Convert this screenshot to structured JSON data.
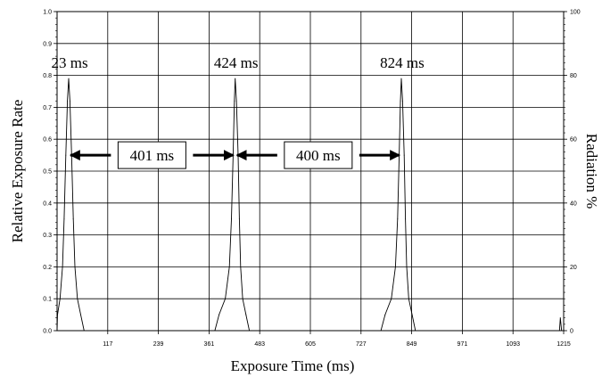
{
  "chart_data": {
    "type": "line",
    "title": "",
    "xlabel": "Exposure Time (ms)",
    "ylabel": "Relative Exposure Rate",
    "y2label": "Radiation %",
    "xlim": [
      -5,
      1215
    ],
    "ylim": [
      0,
      1.0
    ],
    "y2lim": [
      0,
      100
    ],
    "x_ticks": [
      "117",
      "239",
      "361",
      "483",
      "605",
      "727",
      "849",
      "971",
      "1093",
      "1215"
    ],
    "y_ticks": [
      "0.0",
      "0.1",
      "0.2",
      "0.3",
      "0.4",
      "0.5",
      "0.6",
      "0.7",
      "0.8",
      "0.9",
      "1.0"
    ],
    "y2_ticks": [
      "0",
      "20",
      "40",
      "60",
      "80",
      "100"
    ],
    "grid": true,
    "series": [
      {
        "color": "#000000",
        "points": [
          [
            -5,
            0.0
          ],
          [
            -4,
            0.05
          ],
          [
            2,
            0.1
          ],
          [
            8,
            0.2
          ],
          [
            12,
            0.35
          ],
          [
            16,
            0.55
          ],
          [
            20,
            0.72
          ],
          [
            23,
            0.79
          ],
          [
            26,
            0.72
          ],
          [
            30,
            0.55
          ],
          [
            34,
            0.35
          ],
          [
            38,
            0.2
          ],
          [
            44,
            0.1
          ],
          [
            52,
            0.05
          ],
          [
            60,
            0.0
          ],
          [
            375,
            0.0
          ],
          [
            385,
            0.05
          ],
          [
            400,
            0.1
          ],
          [
            410,
            0.2
          ],
          [
            415,
            0.35
          ],
          [
            419,
            0.55
          ],
          [
            422,
            0.72
          ],
          [
            424,
            0.79
          ],
          [
            427,
            0.72
          ],
          [
            431,
            0.55
          ],
          [
            434,
            0.35
          ],
          [
            437,
            0.2
          ],
          [
            442,
            0.1
          ],
          [
            450,
            0.05
          ],
          [
            458,
            0.0
          ],
          [
            775,
            0.0
          ],
          [
            785,
            0.05
          ],
          [
            800,
            0.1
          ],
          [
            810,
            0.2
          ],
          [
            815,
            0.35
          ],
          [
            819,
            0.55
          ],
          [
            822,
            0.72
          ],
          [
            824,
            0.79
          ],
          [
            827,
            0.72
          ],
          [
            831,
            0.55
          ],
          [
            834,
            0.35
          ],
          [
            837,
            0.2
          ],
          [
            842,
            0.1
          ],
          [
            850,
            0.05
          ],
          [
            858,
            0.0
          ],
          [
            1205,
            0.0
          ],
          [
            1207,
            0.04
          ],
          [
            1210,
            0.0
          ],
          [
            1215,
            0.0
          ]
        ]
      }
    ],
    "peak_labels": [
      {
        "text": "23 ms",
        "x": 23
      },
      {
        "text": "424 ms",
        "x": 424
      },
      {
        "text": "824 ms",
        "x": 824
      }
    ],
    "interval_annotations": [
      {
        "text": "401 ms",
        "from": 23,
        "to": 424,
        "y": 0.55
      },
      {
        "text": "400 ms",
        "from": 424,
        "to": 824,
        "y": 0.55
      }
    ]
  }
}
